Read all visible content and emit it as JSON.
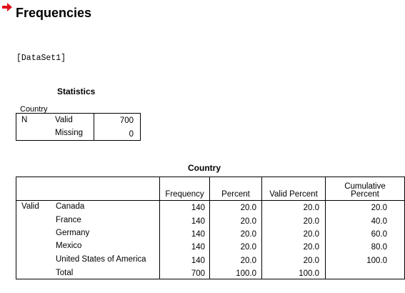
{
  "output": {
    "heading": "Frequencies",
    "dataset_label": "[DataSet1]"
  },
  "statistics": {
    "title": "Statistics",
    "variable": "Country",
    "row_group": "N",
    "valid_label": "Valid",
    "valid_value": "700",
    "missing_label": "Missing",
    "missing_value": "0"
  },
  "frequency_table": {
    "title": "Country",
    "group_label": "Valid",
    "headers": {
      "frequency": "Frequency",
      "percent": "Percent",
      "valid_percent": "Valid Percent",
      "cumulative_line1": "Cumulative",
      "cumulative_line2": "Percent"
    },
    "rows": [
      {
        "category": "Canada",
        "frequency": "140",
        "percent": "20.0",
        "valid_percent": "20.0",
        "cumulative_percent": "20.0"
      },
      {
        "category": "France",
        "frequency": "140",
        "percent": "20.0",
        "valid_percent": "20.0",
        "cumulative_percent": "40.0"
      },
      {
        "category": "Germany",
        "frequency": "140",
        "percent": "20.0",
        "valid_percent": "20.0",
        "cumulative_percent": "60.0"
      },
      {
        "category": "Mexico",
        "frequency": "140",
        "percent": "20.0",
        "valid_percent": "20.0",
        "cumulative_percent": "80.0"
      },
      {
        "category": "United States of America",
        "frequency": "140",
        "percent": "20.0",
        "valid_percent": "20.0",
        "cumulative_percent": "100.0"
      },
      {
        "category": "Total",
        "frequency": "700",
        "percent": "100.0",
        "valid_percent": "100.0",
        "cumulative_percent": ""
      }
    ]
  },
  "colors": {
    "arrow": "#e0101a",
    "text": "#000000",
    "background": "#ffffff"
  }
}
